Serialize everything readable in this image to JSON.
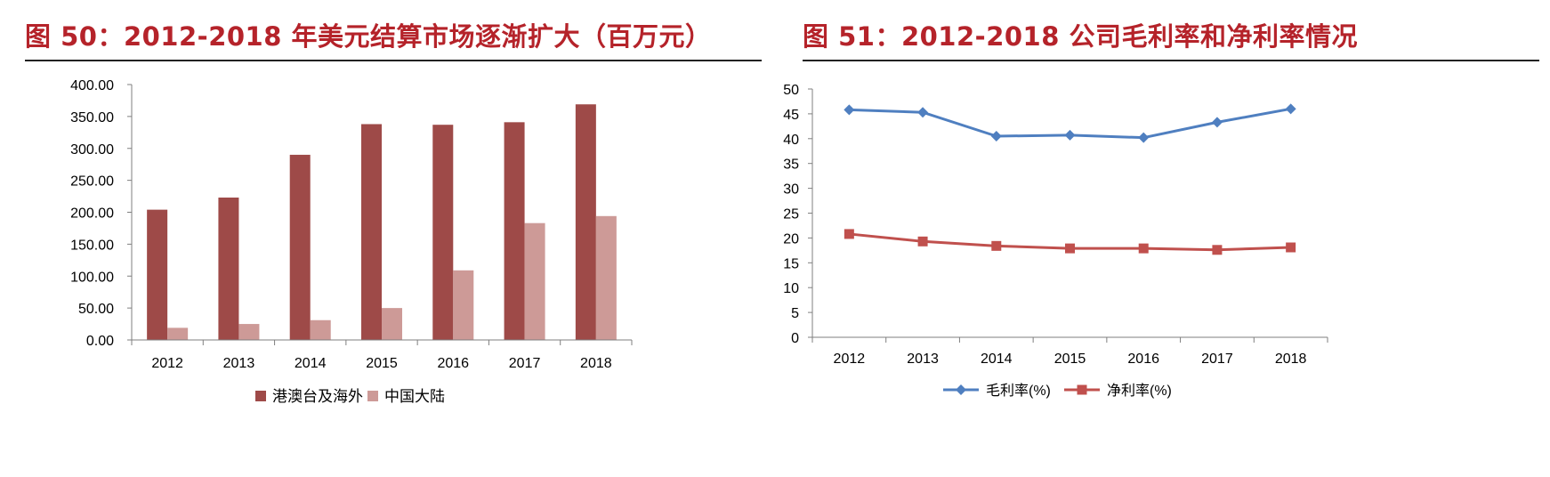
{
  "colors": {
    "title": "#b5232a",
    "bar_overseas": "#9e4a48",
    "bar_mainland": "#cd9a97",
    "line_gross": "#4f7fc0",
    "line_net": "#c0504d"
  },
  "chart_data": [
    {
      "type": "bar",
      "title": "图 50：2012-2018 年美元结算市场逐渐扩大（百万元）",
      "categories": [
        "2012",
        "2013",
        "2014",
        "2015",
        "2016",
        "2017",
        "2018"
      ],
      "series": [
        {
          "name": "港澳台及海外",
          "values": [
            204,
            223,
            290,
            338,
            337,
            341,
            369
          ]
        },
        {
          "name": "中国大陆",
          "values": [
            19,
            25,
            31,
            50,
            109,
            183,
            194
          ]
        }
      ],
      "ylim": [
        0,
        400
      ],
      "yticks": [
        "0.00",
        "50.00",
        "100.00",
        "150.00",
        "200.00",
        "250.00",
        "300.00",
        "350.00",
        "400.00"
      ],
      "legend": "bottom",
      "grid": false
    },
    {
      "type": "line",
      "title": "图 51：2012-2018 公司毛利率和净利率情况",
      "categories": [
        "2012",
        "2013",
        "2014",
        "2015",
        "2016",
        "2017",
        "2018"
      ],
      "series": [
        {
          "name": "毛利率(%)",
          "marker": "diamond",
          "values": [
            45.8,
            45.3,
            40.5,
            40.7,
            40.2,
            43.3,
            46.0
          ]
        },
        {
          "name": "净利率(%)",
          "marker": "square",
          "values": [
            20.8,
            19.3,
            18.4,
            17.9,
            17.9,
            17.6,
            18.1
          ]
        }
      ],
      "ylim": [
        0,
        50
      ],
      "yticks": [
        "0",
        "5",
        "10",
        "15",
        "20",
        "25",
        "30",
        "35",
        "40",
        "45",
        "50"
      ],
      "legend": "bottom",
      "grid": false
    }
  ]
}
